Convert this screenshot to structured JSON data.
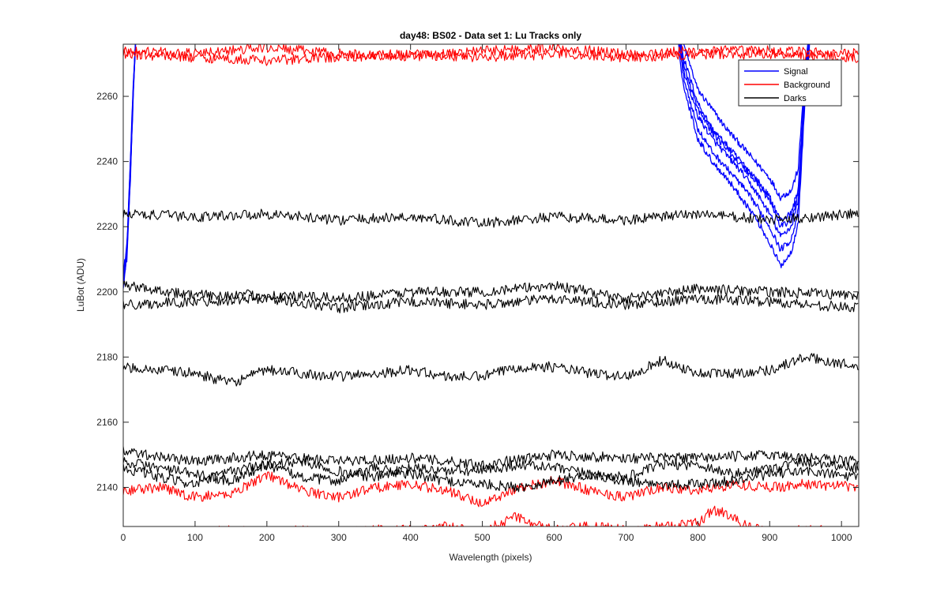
{
  "chart_data": {
    "type": "line",
    "title": "day48: BS02 - Data set 1: Lu Tracks only",
    "xlabel": "Wavelength (pixels)",
    "ylabel": "LuBot (ADU)",
    "xlim": [
      0,
      1024
    ],
    "ylim": [
      2128,
      2276
    ],
    "xticks": [
      0,
      100,
      200,
      300,
      400,
      500,
      600,
      700,
      800,
      900,
      1000
    ],
    "yticks": [
      2140,
      2160,
      2180,
      2200,
      2220,
      2240,
      2260
    ],
    "grid": false,
    "legend": {
      "placement": "top-right",
      "entries": [
        {
          "label": "Signal",
          "color": "#0000ff"
        },
        {
          "label": "Background",
          "color": "#ff0000"
        },
        {
          "label": "Darks",
          "color": "#000000"
        }
      ]
    },
    "series": [
      {
        "group": "Signal",
        "color": "#0000ff",
        "x": [
          0,
          5,
          10,
          14,
          17,
          20,
          760,
          780,
          800,
          820,
          840,
          860,
          880,
          900,
          915,
          930,
          940,
          945,
          950,
          955,
          960
        ],
        "y": [
          2202,
          2210,
          2235,
          2260,
          2276,
          2290,
          2300,
          2276,
          2262,
          2256,
          2250,
          2245,
          2240,
          2235,
          2229,
          2231,
          2238,
          2255,
          2270,
          2280,
          2300
        ]
      },
      {
        "group": "Signal",
        "color": "#0000ff",
        "x": [
          0,
          5,
          10,
          14,
          17,
          20,
          760,
          780,
          800,
          820,
          840,
          860,
          880,
          900,
          915,
          930,
          940,
          945,
          950,
          955,
          960
        ],
        "y": [
          2204,
          2212,
          2238,
          2262,
          2276,
          2290,
          2300,
          2272,
          2258,
          2250,
          2245,
          2240,
          2235,
          2229,
          2222,
          2224,
          2232,
          2250,
          2268,
          2278,
          2300
        ]
      },
      {
        "group": "Signal",
        "color": "#0000ff",
        "x": [
          0,
          5,
          10,
          14,
          17,
          20,
          760,
          780,
          800,
          820,
          840,
          860,
          880,
          900,
          915,
          930,
          940,
          945,
          950,
          955,
          960
        ],
        "y": [
          2203,
          2211,
          2236,
          2261,
          2276,
          2290,
          2300,
          2268,
          2254,
          2247,
          2242,
          2237,
          2231,
          2224,
          2217,
          2220,
          2228,
          2247,
          2265,
          2276,
          2300
        ]
      },
      {
        "group": "Signal",
        "color": "#0000ff",
        "x": [
          0,
          5,
          10,
          14,
          17,
          20,
          760,
          780,
          800,
          820,
          840,
          860,
          880,
          900,
          915,
          930,
          940,
          945,
          950,
          955,
          960
        ],
        "y": [
          2205,
          2213,
          2240,
          2263,
          2276,
          2290,
          2300,
          2266,
          2250,
          2243,
          2238,
          2233,
          2227,
          2220,
          2213,
          2216,
          2225,
          2244,
          2263,
          2275,
          2300
        ]
      },
      {
        "group": "Signal",
        "color": "#0000ff",
        "x": [
          0,
          5,
          10,
          14,
          17,
          20,
          760,
          780,
          800,
          820,
          840,
          860,
          880,
          900,
          915,
          930,
          940,
          945,
          950,
          955,
          960
        ],
        "y": [
          2203,
          2212,
          2237,
          2262,
          2276,
          2290,
          2300,
          2263,
          2247,
          2240,
          2235,
          2229,
          2223,
          2215,
          2208,
          2212,
          2222,
          2242,
          2262,
          2274,
          2300
        ]
      },
      {
        "group": "Signal",
        "color": "#0000ff",
        "x": [
          0,
          5,
          10,
          14,
          17,
          20,
          760,
          780,
          800,
          820,
          840,
          860,
          880,
          900,
          915,
          930,
          940,
          945,
          950,
          955,
          960
        ],
        "y": [
          2206,
          2214,
          2241,
          2264,
          2276,
          2290,
          2300,
          2270,
          2256,
          2249,
          2244,
          2239,
          2234,
          2228,
          2220,
          2222,
          2230,
          2249,
          2266,
          2277,
          2300
        ]
      },
      {
        "group": "Background",
        "color": "#ff0000",
        "x": [
          0,
          100,
          200,
          300,
          400,
          500,
          600,
          700,
          800,
          900,
          1024
        ],
        "y": [
          2274,
          2273,
          2275,
          2273,
          2272,
          2274,
          2275,
          2273,
          2274,
          2274,
          2273
        ]
      },
      {
        "group": "Background",
        "color": "#ff0000",
        "x": [
          0,
          100,
          200,
          300,
          400,
          500,
          600,
          700,
          800,
          900,
          1024
        ],
        "y": [
          2273,
          2272,
          2271,
          2272,
          2273,
          2272,
          2273,
          2272,
          2273,
          2273,
          2272
        ]
      },
      {
        "group": "Background",
        "color": "#ff0000",
        "x": [
          0,
          50,
          100,
          150,
          200,
          250,
          300,
          350,
          400,
          450,
          500,
          550,
          600,
          650,
          700,
          750,
          800,
          850,
          900,
          950,
          1024
        ],
        "y": [
          2139,
          2140,
          2137,
          2138,
          2144,
          2139,
          2137,
          2140,
          2141,
          2139,
          2135,
          2140,
          2142,
          2139,
          2137,
          2140,
          2139,
          2141,
          2140,
          2141,
          2140
        ]
      },
      {
        "group": "Background",
        "color": "#ff0000",
        "x": [
          0,
          50,
          100,
          150,
          200,
          250,
          300,
          350,
          400,
          450,
          500,
          520,
          550,
          580,
          600,
          650,
          700,
          750,
          800,
          820,
          840,
          860,
          900,
          950,
          1024
        ],
        "y": [
          2126,
          2127,
          2126,
          2127,
          2126,
          2127,
          2126,
          2127,
          2127,
          2128,
          2126,
          2129,
          2131,
          2128,
          2127,
          2128,
          2127,
          2128,
          2129,
          2133,
          2132,
          2129,
          2126,
          2127,
          2126
        ]
      },
      {
        "group": "Darks",
        "color": "#000000",
        "x": [
          0,
          100,
          200,
          300,
          400,
          500,
          600,
          700,
          800,
          900,
          1024
        ],
        "y": [
          2224,
          2223,
          2224,
          2222,
          2223,
          2221,
          2223,
          2222,
          2224,
          2222,
          2224
        ]
      },
      {
        "group": "Darks",
        "color": "#000000",
        "x": [
          0,
          100,
          200,
          300,
          400,
          500,
          600,
          700,
          800,
          900,
          1024
        ],
        "y": [
          2202,
          2199,
          2199,
          2198,
          2200,
          2200,
          2202,
          2198,
          2201,
          2200,
          2199
        ]
      },
      {
        "group": "Darks",
        "color": "#000000",
        "x": [
          0,
          100,
          200,
          300,
          400,
          500,
          600,
          700,
          800,
          900,
          1024
        ],
        "y": [
          2196,
          2197,
          2198,
          2195,
          2197,
          2196,
          2198,
          2196,
          2198,
          2197,
          2195
        ]
      },
      {
        "group": "Darks",
        "color": "#000000",
        "x": [
          0,
          50,
          100,
          150,
          200,
          250,
          300,
          350,
          400,
          450,
          500,
          550,
          600,
          650,
          700,
          750,
          800,
          850,
          900,
          950,
          1024
        ],
        "y": [
          2177,
          2176,
          2175,
          2172,
          2176,
          2175,
          2174,
          2175,
          2176,
          2174,
          2174,
          2177,
          2177,
          2175,
          2174,
          2179,
          2175,
          2175,
          2176,
          2180,
          2177
        ]
      },
      {
        "group": "Darks",
        "color": "#000000",
        "x": [
          0,
          100,
          200,
          300,
          400,
          500,
          600,
          700,
          800,
          900,
          1024
        ],
        "y": [
          2151,
          2148,
          2150,
          2148,
          2149,
          2147,
          2150,
          2149,
          2149,
          2150,
          2148
        ]
      },
      {
        "group": "Darks",
        "color": "#000000",
        "x": [
          0,
          50,
          100,
          150,
          200,
          250,
          300,
          350,
          400,
          450,
          500,
          550,
          600,
          650,
          700,
          750,
          800,
          850,
          900,
          950,
          1024
        ],
        "y": [
          2148,
          2146,
          2144,
          2142,
          2147,
          2148,
          2145,
          2143,
          2146,
          2145,
          2145,
          2147,
          2146,
          2144,
          2143,
          2147,
          2147,
          2144,
          2146,
          2148,
          2146
        ]
      },
      {
        "group": "Darks",
        "color": "#000000",
        "x": [
          0,
          50,
          100,
          150,
          200,
          250,
          300,
          350,
          400,
          450,
          500,
          550,
          600,
          650,
          700,
          750,
          800,
          850,
          900,
          950,
          1024
        ],
        "y": [
          2146,
          2143,
          2141,
          2145,
          2147,
          2143,
          2142,
          2146,
          2144,
          2142,
          2141,
          2140,
          2142,
          2144,
          2142,
          2141,
          2141,
          2142,
          2144,
          2145,
          2143
        ]
      }
    ]
  }
}
